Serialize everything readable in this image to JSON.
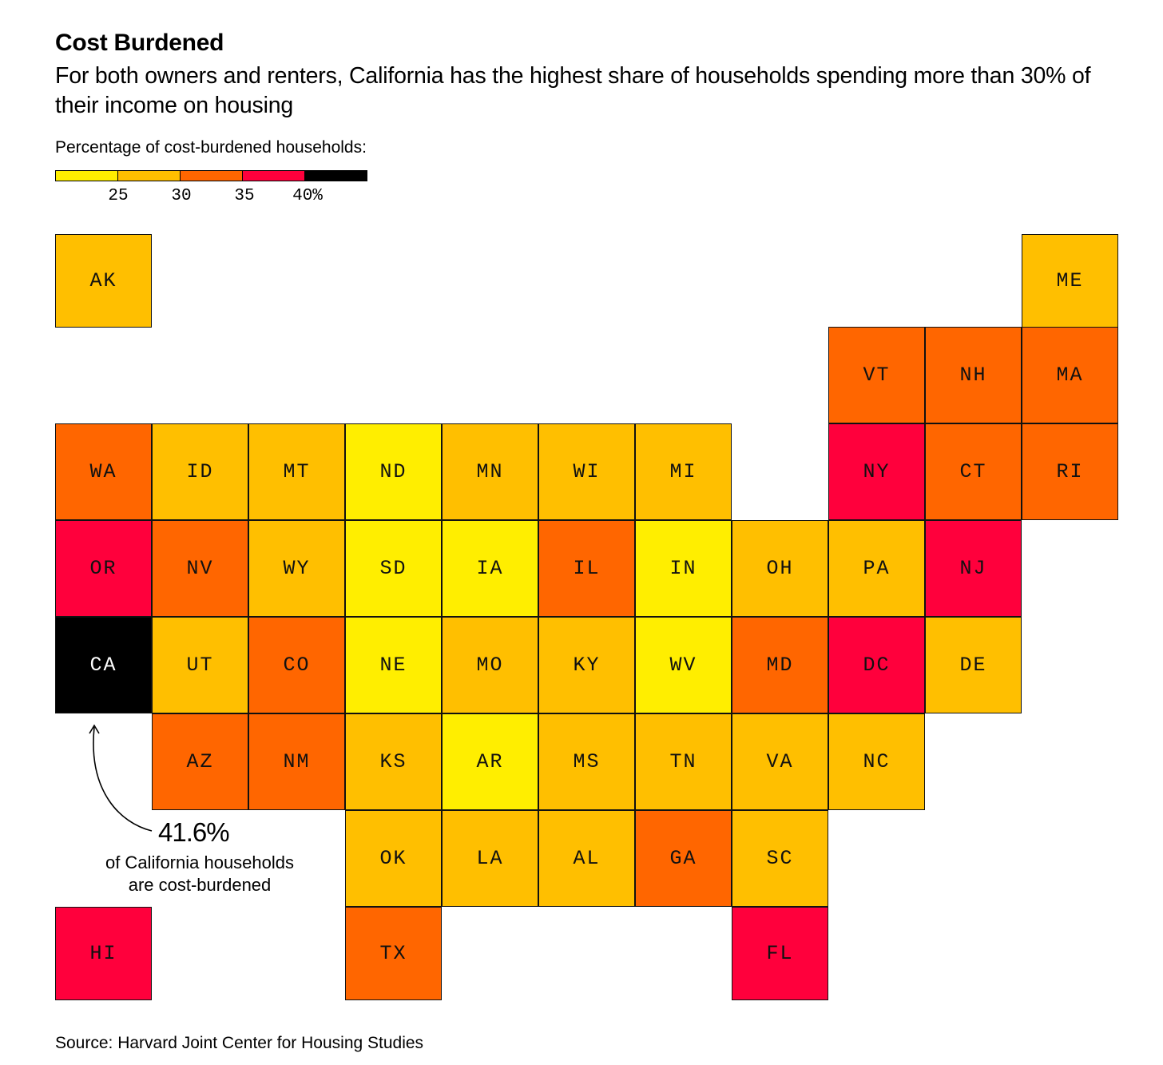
{
  "title": "Cost Burdened",
  "subtitle": "For both owners and renters, California has the highest share of households spending more than 30% of their income on housing",
  "legend": {
    "title": "Percentage of cost-burdened households:",
    "colors": [
      "#ffee00",
      "#ffbf00",
      "#ff6600",
      "#ff003c",
      "#000000"
    ],
    "ticks": [
      "25",
      "30",
      "35",
      "40%"
    ]
  },
  "annotation": {
    "value": "41.6%",
    "text_line1": "of California households",
    "text_line2": "are cost-burdened"
  },
  "source": "Source: Harvard Joint Center for Housing Studies",
  "chart_data": {
    "type": "tile-map",
    "bins": [
      {
        "label": "<25",
        "color": "#ffee00"
      },
      {
        "label": "25-30",
        "color": "#ffbf00"
      },
      {
        "label": "30-35",
        "color": "#ff6600"
      },
      {
        "label": "35-40",
        "color": "#ff003c"
      },
      {
        "label": ">40",
        "color": "#000000"
      }
    ],
    "states": [
      {
        "code": "AK",
        "col": 0,
        "row": 0,
        "bin": 1
      },
      {
        "code": "ME",
        "col": 10,
        "row": 0,
        "bin": 1
      },
      {
        "code": "VT",
        "col": 8,
        "row": 1,
        "bin": 2
      },
      {
        "code": "NH",
        "col": 9,
        "row": 1,
        "bin": 2
      },
      {
        "code": "MA",
        "col": 10,
        "row": 1,
        "bin": 2
      },
      {
        "code": "WA",
        "col": 0,
        "row": 2,
        "bin": 2
      },
      {
        "code": "ID",
        "col": 1,
        "row": 2,
        "bin": 1
      },
      {
        "code": "MT",
        "col": 2,
        "row": 2,
        "bin": 1
      },
      {
        "code": "ND",
        "col": 3,
        "row": 2,
        "bin": 0
      },
      {
        "code": "MN",
        "col": 4,
        "row": 2,
        "bin": 1
      },
      {
        "code": "WI",
        "col": 5,
        "row": 2,
        "bin": 1
      },
      {
        "code": "MI",
        "col": 6,
        "row": 2,
        "bin": 1
      },
      {
        "code": "NY",
        "col": 8,
        "row": 2,
        "bin": 3
      },
      {
        "code": "CT",
        "col": 9,
        "row": 2,
        "bin": 2
      },
      {
        "code": "RI",
        "col": 10,
        "row": 2,
        "bin": 2
      },
      {
        "code": "OR",
        "col": 0,
        "row": 3,
        "bin": 3
      },
      {
        "code": "NV",
        "col": 1,
        "row": 3,
        "bin": 2
      },
      {
        "code": "WY",
        "col": 2,
        "row": 3,
        "bin": 1
      },
      {
        "code": "SD",
        "col": 3,
        "row": 3,
        "bin": 0
      },
      {
        "code": "IA",
        "col": 4,
        "row": 3,
        "bin": 0
      },
      {
        "code": "IL",
        "col": 5,
        "row": 3,
        "bin": 2
      },
      {
        "code": "IN",
        "col": 6,
        "row": 3,
        "bin": 0
      },
      {
        "code": "OH",
        "col": 7,
        "row": 3,
        "bin": 1
      },
      {
        "code": "PA",
        "col": 8,
        "row": 3,
        "bin": 1
      },
      {
        "code": "NJ",
        "col": 9,
        "row": 3,
        "bin": 3
      },
      {
        "code": "CA",
        "col": 0,
        "row": 4,
        "bin": 4,
        "value": 41.6
      },
      {
        "code": "UT",
        "col": 1,
        "row": 4,
        "bin": 1
      },
      {
        "code": "CO",
        "col": 2,
        "row": 4,
        "bin": 2
      },
      {
        "code": "NE",
        "col": 3,
        "row": 4,
        "bin": 0
      },
      {
        "code": "MO",
        "col": 4,
        "row": 4,
        "bin": 1
      },
      {
        "code": "KY",
        "col": 5,
        "row": 4,
        "bin": 1
      },
      {
        "code": "WV",
        "col": 6,
        "row": 4,
        "bin": 0
      },
      {
        "code": "MD",
        "col": 7,
        "row": 4,
        "bin": 2
      },
      {
        "code": "DC",
        "col": 8,
        "row": 4,
        "bin": 3
      },
      {
        "code": "DE",
        "col": 9,
        "row": 4,
        "bin": 1
      },
      {
        "code": "AZ",
        "col": 1,
        "row": 5,
        "bin": 2
      },
      {
        "code": "NM",
        "col": 2,
        "row": 5,
        "bin": 2
      },
      {
        "code": "KS",
        "col": 3,
        "row": 5,
        "bin": 1
      },
      {
        "code": "AR",
        "col": 4,
        "row": 5,
        "bin": 0
      },
      {
        "code": "MS",
        "col": 5,
        "row": 5,
        "bin": 1
      },
      {
        "code": "TN",
        "col": 6,
        "row": 5,
        "bin": 1
      },
      {
        "code": "VA",
        "col": 7,
        "row": 5,
        "bin": 1
      },
      {
        "code": "NC",
        "col": 8,
        "row": 5,
        "bin": 1
      },
      {
        "code": "OK",
        "col": 3,
        "row": 6,
        "bin": 1
      },
      {
        "code": "LA",
        "col": 4,
        "row": 6,
        "bin": 1
      },
      {
        "code": "AL",
        "col": 5,
        "row": 6,
        "bin": 1
      },
      {
        "code": "GA",
        "col": 6,
        "row": 6,
        "bin": 2
      },
      {
        "code": "SC",
        "col": 7,
        "row": 6,
        "bin": 1
      },
      {
        "code": "HI",
        "col": 0,
        "row": 7,
        "bin": 3
      },
      {
        "code": "TX",
        "col": 3,
        "row": 7,
        "bin": 2
      },
      {
        "code": "FL",
        "col": 7,
        "row": 7,
        "bin": 3
      }
    ]
  }
}
